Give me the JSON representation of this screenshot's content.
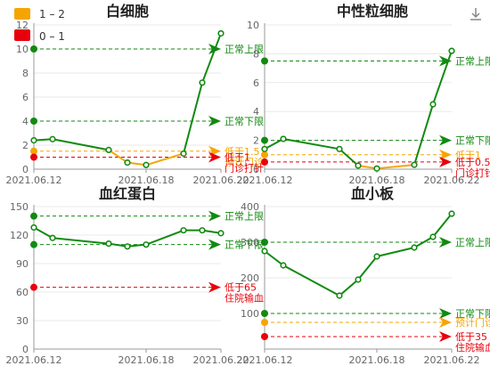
{
  "toolbar": {
    "download_icon": "download-icon"
  },
  "legend": [
    {
      "label": "1 – 2",
      "color": "#f5a500"
    },
    {
      "label": "0 – 1",
      "color": "#e8000a"
    }
  ],
  "colors": {
    "green": "#118a11",
    "orange": "#f5a500",
    "red": "#e8000a",
    "axis": "#999999",
    "grid": "#e9e9e9"
  },
  "chart_data": [
    {
      "type": "line",
      "title": "白细胞",
      "x": [
        "2021.06.12",
        "2021.06.13",
        "2021.06.16",
        "2021.06.17",
        "2021.06.18",
        "2021.06.20",
        "2021.06.21",
        "2021.06.22"
      ],
      "x_tick_labels": [
        "2021.06.12",
        "2021.06.18",
        "2021.06.22"
      ],
      "y_tick_labels": [
        "0",
        "2",
        "4",
        "6",
        "8",
        "10",
        "12"
      ],
      "ylim": [
        0,
        12
      ],
      "series": [
        {
          "values": [
            2.4,
            2.5,
            1.6,
            0.55,
            0.35,
            1.3,
            7.2,
            11.3
          ]
        }
      ],
      "reference_lines": [
        {
          "value": 10,
          "color": "green",
          "labels": [
            "正常上限"
          ]
        },
        {
          "value": 4,
          "color": "green",
          "labels": [
            "正常下限"
          ]
        },
        {
          "value": 1.5,
          "color": "orange",
          "labels": [
            "低于1.5",
            "预计门诊"
          ]
        },
        {
          "value": 1,
          "color": "red",
          "labels": [
            "低于1",
            "门诊打针"
          ]
        }
      ]
    },
    {
      "type": "line",
      "title": "中性粒细胞",
      "x": [
        "2021.06.12",
        "2021.06.13",
        "2021.06.16",
        "2021.06.17",
        "2021.06.18",
        "2021.06.20",
        "2021.06.21",
        "2021.06.22"
      ],
      "x_tick_labels": [
        "2021.06.12",
        "2021.06.18",
        "2021.06.22"
      ],
      "y_tick_labels": [
        "0",
        "2",
        "4",
        "6",
        "8",
        "10"
      ],
      "ylim": [
        0,
        10
      ],
      "series": [
        {
          "values": [
            1.4,
            2.1,
            1.4,
            0.25,
            0.05,
            0.3,
            4.5,
            8.2
          ]
        }
      ],
      "reference_lines": [
        {
          "value": 7.5,
          "color": "green",
          "labels": [
            "正常上限"
          ]
        },
        {
          "value": 2,
          "color": "green",
          "labels": [
            "正常下限"
          ]
        },
        {
          "value": 1,
          "color": "orange",
          "labels": [
            "低于1"
          ]
        },
        {
          "value": 0.5,
          "color": "red",
          "labels": [
            "低于0.5",
            "门诊打针"
          ]
        }
      ]
    },
    {
      "type": "line",
      "title": "血红蛋白",
      "x": [
        "2021.06.12",
        "2021.06.13",
        "2021.06.16",
        "2021.06.17",
        "2021.06.18",
        "2021.06.20",
        "2021.06.21",
        "2021.06.22"
      ],
      "x_tick_labels": [
        "2021.06.12",
        "2021.06.18",
        "2021.06.22"
      ],
      "y_tick_labels": [
        "0",
        "30",
        "60",
        "90",
        "120",
        "150"
      ],
      "ylim": [
        0,
        150
      ],
      "series": [
        {
          "values": [
            128,
            117,
            111,
            108,
            110,
            125,
            125,
            122
          ]
        }
      ],
      "reference_lines": [
        {
          "value": 140,
          "color": "green",
          "labels": [
            "正常上限"
          ]
        },
        {
          "value": 110,
          "color": "green",
          "labels": [
            "正常下限"
          ]
        },
        {
          "value": 65,
          "color": "red",
          "labels": [
            "低于65",
            "住院输血"
          ]
        }
      ]
    },
    {
      "type": "line",
      "title": "血小板",
      "x": [
        "2021.06.12",
        "2021.06.13",
        "2021.06.16",
        "2021.06.17",
        "2021.06.18",
        "2021.06.20",
        "2021.06.21",
        "2021.06.22"
      ],
      "x_tick_labels": [
        "2021.06.12",
        "2021.06.18",
        "2021.06.22"
      ],
      "y_tick_labels": [
        "100",
        "200",
        "300",
        "400"
      ],
      "ylim": [
        0,
        400
      ],
      "series": [
        {
          "values": [
            275,
            235,
            150,
            195,
            260,
            285,
            315,
            380
          ]
        }
      ],
      "reference_lines": [
        {
          "value": 300,
          "color": "green",
          "labels": [
            "正常上限"
          ]
        },
        {
          "value": 100,
          "color": "green",
          "labels": [
            "正常下限"
          ]
        },
        {
          "value": 75,
          "color": "orange",
          "labels": [
            "预计门诊"
          ]
        },
        {
          "value": 35,
          "color": "red",
          "labels": [
            "低于35",
            "住院输血"
          ]
        }
      ]
    }
  ]
}
